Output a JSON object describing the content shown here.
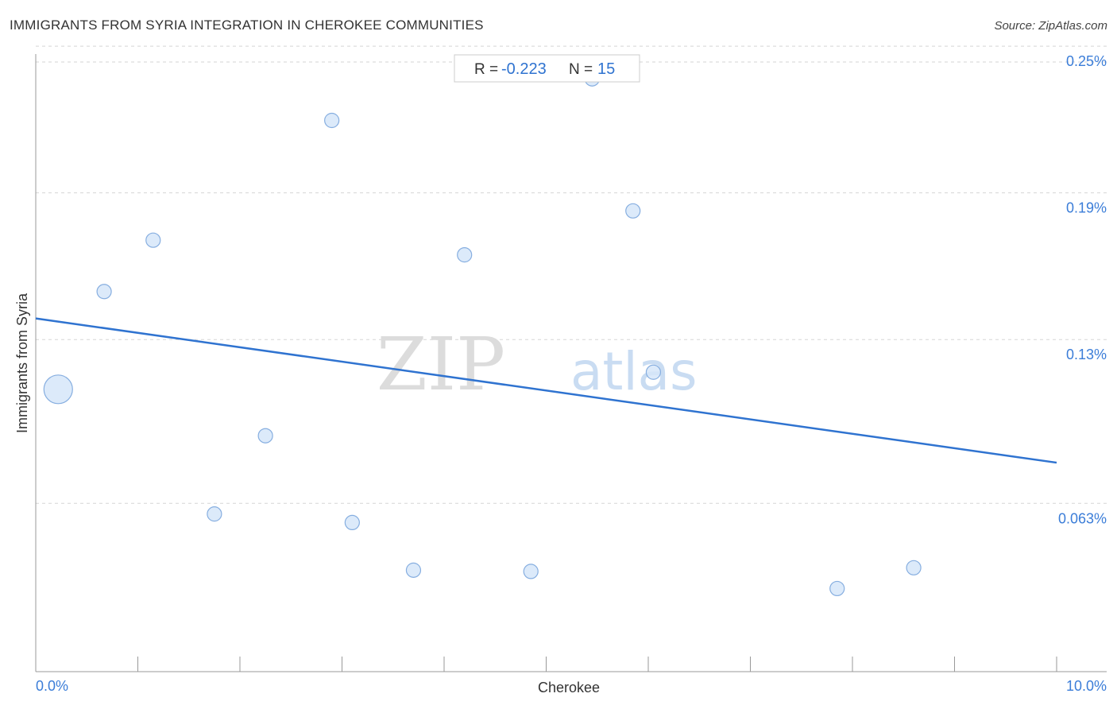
{
  "header": {
    "title": "IMMIGRANTS FROM SYRIA INTEGRATION IN CHEROKEE COMMUNITIES",
    "source": "Source: ZipAtlas.com"
  },
  "stats": {
    "r_label": "R =",
    "r_value": "-0.223",
    "n_label": "N =",
    "n_value": "15"
  },
  "watermark": {
    "zip": "ZIP",
    "atlas": "atlas"
  },
  "colors": {
    "accent": "#2f73d0",
    "point_fill": "#d6e6f9",
    "point_stroke": "#86aee0",
    "grid": "#d5d5d5",
    "axis": "#999999",
    "tick_label": "#3b7dd8"
  },
  "chart_data": {
    "type": "scatter",
    "title": "IMMIGRANTS FROM SYRIA INTEGRATION IN CHEROKEE COMMUNITIES",
    "xlabel": "Cherokee",
    "ylabel": "Immigrants from Syria",
    "xlim": [
      0,
      10
    ],
    "ylim": [
      0.0,
      0.252
    ],
    "x_tick_labels": [
      "0.0%",
      "10.0%"
    ],
    "y_ticks": [
      {
        "value": 0.25,
        "label": "0.25%"
      },
      {
        "value": 0.19,
        "label": "0.19%"
      },
      {
        "value": 0.13,
        "label": "0.13%"
      },
      {
        "value": 0.063,
        "label": "0.063%"
      }
    ],
    "grid": true,
    "points": [
      {
        "x": 0.22,
        "y": 0.1155,
        "size": "large"
      },
      {
        "x": 0.67,
        "y": 0.1555,
        "size": "normal"
      },
      {
        "x": 1.15,
        "y": 0.1765,
        "size": "normal"
      },
      {
        "x": 1.75,
        "y": 0.0645,
        "size": "normal"
      },
      {
        "x": 2.25,
        "y": 0.0965,
        "size": "normal"
      },
      {
        "x": 2.9,
        "y": 0.2255,
        "size": "normal"
      },
      {
        "x": 3.1,
        "y": 0.061,
        "size": "normal"
      },
      {
        "x": 3.7,
        "y": 0.0415,
        "size": "normal"
      },
      {
        "x": 4.2,
        "y": 0.1705,
        "size": "normal"
      },
      {
        "x": 4.85,
        "y": 0.041,
        "size": "normal"
      },
      {
        "x": 5.45,
        "y": 0.2425,
        "size": "normal"
      },
      {
        "x": 5.85,
        "y": 0.1885,
        "size": "normal"
      },
      {
        "x": 6.05,
        "y": 0.1225,
        "size": "normal"
      },
      {
        "x": 7.85,
        "y": 0.034,
        "size": "normal"
      },
      {
        "x": 8.6,
        "y": 0.0425,
        "size": "normal"
      }
    ],
    "trendline": {
      "x": [
        0,
        10
      ],
      "y": [
        0.1445,
        0.0855
      ]
    }
  }
}
